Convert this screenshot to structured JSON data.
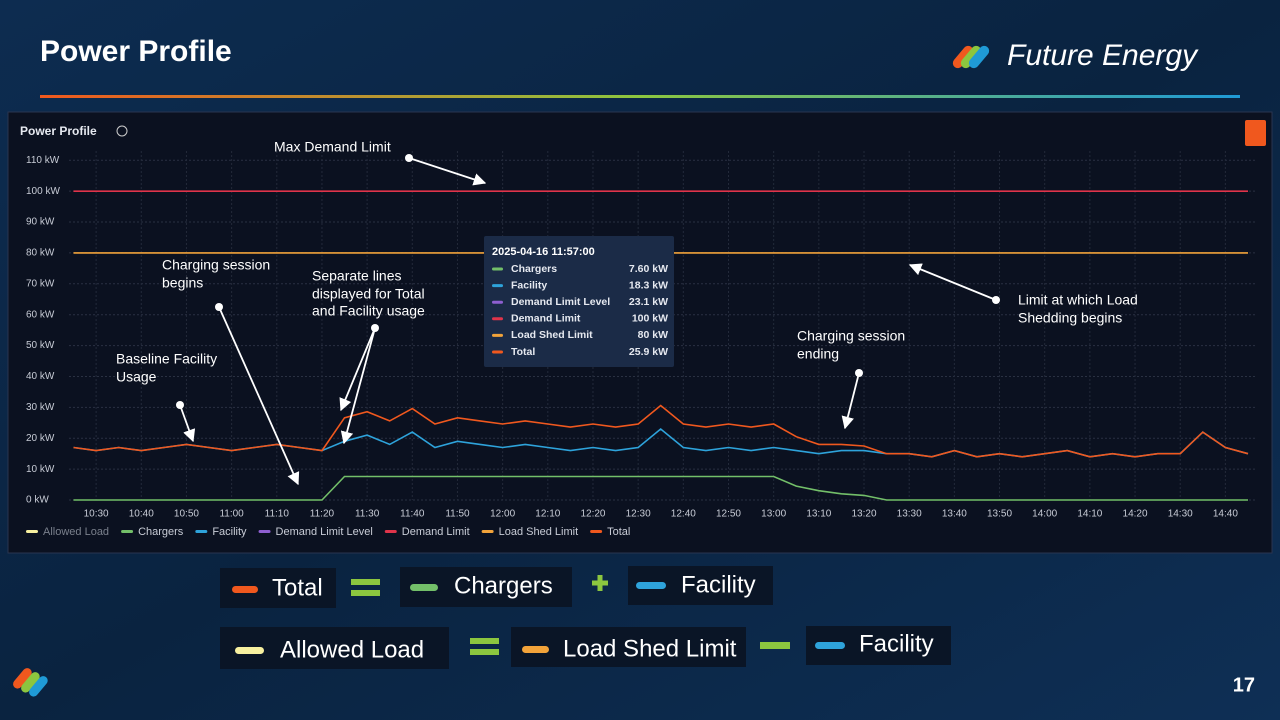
{
  "slide": {
    "title": "Power Profile",
    "brand": "Future Energy",
    "page_number": "17",
    "equations": [
      [
        "Total",
        "Chargers",
        "Facility"
      ],
      [
        "Allowed Load",
        "Load Shed Limit",
        "Facility"
      ]
    ]
  },
  "chart_data": {
    "type": "line",
    "title": "Power Profile",
    "x": [
      "10:25",
      "10:30",
      "10:35",
      "10:40",
      "10:45",
      "10:50",
      "10:55",
      "11:00",
      "11:05",
      "11:10",
      "11:15",
      "11:20",
      "11:25",
      "11:30",
      "11:35",
      "11:40",
      "11:45",
      "11:50",
      "11:55",
      "12:00",
      "12:05",
      "12:10",
      "12:15",
      "12:20",
      "12:25",
      "12:30",
      "12:35",
      "12:40",
      "12:45",
      "12:50",
      "12:55",
      "13:00",
      "13:05",
      "13:10",
      "13:15",
      "13:20",
      "13:25",
      "13:30",
      "13:35",
      "13:40",
      "13:45",
      "13:50",
      "13:55",
      "14:00",
      "14:05",
      "14:10",
      "14:15",
      "14:20",
      "14:25",
      "14:30",
      "14:35",
      "14:40",
      "14:45"
    ],
    "xlim": [
      "10:24",
      "14:47"
    ],
    "xticks": [
      "10:30",
      "10:40",
      "10:50",
      "11:00",
      "11:10",
      "11:20",
      "11:30",
      "11:40",
      "11:50",
      "12:00",
      "12:10",
      "12:20",
      "12:30",
      "12:40",
      "12:50",
      "13:00",
      "13:10",
      "13:20",
      "13:30",
      "13:40",
      "13:50",
      "14:00",
      "14:10",
      "14:20",
      "14:30",
      "14:40"
    ],
    "ylim": [
      0,
      113
    ],
    "yticks": [
      {
        "value": 0,
        "label": "0 kW"
      },
      {
        "value": 10,
        "label": "10 kW"
      },
      {
        "value": 20,
        "label": "20 kW"
      },
      {
        "value": 30,
        "label": "30 kW"
      },
      {
        "value": 40,
        "label": "40 kW"
      },
      {
        "value": 50,
        "label": "50 kW"
      },
      {
        "value": 60,
        "label": "60 kW"
      },
      {
        "value": 70,
        "label": "70 kW"
      },
      {
        "value": 80,
        "label": "80 kW"
      },
      {
        "value": 90,
        "label": "90 kW"
      },
      {
        "value": 100,
        "label": "100 kW"
      },
      {
        "value": 110,
        "label": "110 kW"
      }
    ],
    "grid": true,
    "series": [
      {
        "name": "Allowed Load",
        "color": "#f7f0a0",
        "values": [
          null,
          null,
          null,
          null,
          null,
          null,
          null,
          null,
          null,
          null,
          null,
          null,
          null,
          null,
          null,
          null,
          null,
          null,
          null,
          null,
          null,
          null,
          null,
          null,
          null,
          null,
          null,
          null,
          null,
          null,
          null,
          null,
          null,
          null,
          null,
          null,
          null,
          null,
          null,
          null,
          null,
          null,
          null,
          null,
          null,
          null,
          null,
          null,
          null,
          null,
          null,
          null,
          null
        ]
      },
      {
        "name": "Chargers",
        "color": "#73bf69",
        "values": [
          0,
          0,
          0,
          0,
          0,
          0,
          0,
          0,
          0,
          0,
          0,
          0,
          7.6,
          7.6,
          7.6,
          7.6,
          7.6,
          7.6,
          7.6,
          7.6,
          7.6,
          7.6,
          7.6,
          7.6,
          7.6,
          7.6,
          7.6,
          7.6,
          7.6,
          7.6,
          7.6,
          7.6,
          4.5,
          3,
          2,
          1.5,
          0,
          0,
          0,
          0,
          0,
          0,
          0,
          0,
          0,
          0,
          0,
          0,
          0,
          0,
          0,
          0,
          0
        ]
      },
      {
        "name": "Facility",
        "color": "#2ea3db",
        "values": [
          17,
          16,
          17,
          16,
          17,
          18,
          17,
          16,
          17,
          18,
          17,
          16,
          19,
          21,
          18,
          22,
          17,
          19,
          18,
          17,
          18,
          17,
          16,
          17,
          16,
          17,
          23,
          17,
          16,
          17,
          16,
          17,
          16,
          15,
          16,
          16,
          15,
          15,
          14,
          16,
          14,
          15,
          14,
          15,
          16,
          14,
          15,
          14,
          15,
          15,
          22,
          17,
          15
        ]
      },
      {
        "name": "Demand Limit Level",
        "color": "#8e5fd0",
        "values": [
          null,
          null,
          null,
          null,
          null,
          null,
          null,
          null,
          null,
          null,
          null,
          null,
          null,
          null,
          null,
          null,
          null,
          null,
          null,
          null,
          null,
          null,
          null,
          null,
          null,
          null,
          null,
          null,
          null,
          null,
          null,
          null,
          null,
          null,
          null,
          null,
          null,
          null,
          null,
          null,
          null,
          null,
          null,
          null,
          null,
          null,
          null,
          null,
          null,
          null,
          null,
          null,
          null
        ]
      },
      {
        "name": "Demand Limit",
        "color": "#e0344a",
        "values": [
          100,
          100,
          100,
          100,
          100,
          100,
          100,
          100,
          100,
          100,
          100,
          100,
          100,
          100,
          100,
          100,
          100,
          100,
          100,
          100,
          100,
          100,
          100,
          100,
          100,
          100,
          100,
          100,
          100,
          100,
          100,
          100,
          100,
          100,
          100,
          100,
          100,
          100,
          100,
          100,
          100,
          100,
          100,
          100,
          100,
          100,
          100,
          100,
          100,
          100,
          100,
          100,
          100
        ]
      },
      {
        "name": "Load Shed Limit",
        "color": "#f2a33a",
        "values": [
          80,
          80,
          80,
          80,
          80,
          80,
          80,
          80,
          80,
          80,
          80,
          80,
          80,
          80,
          80,
          80,
          80,
          80,
          80,
          80,
          80,
          80,
          80,
          80,
          80,
          80,
          80,
          80,
          80,
          80,
          80,
          80,
          80,
          80,
          80,
          80,
          80,
          80,
          80,
          80,
          80,
          80,
          80,
          80,
          80,
          80,
          80,
          80,
          80,
          80,
          80,
          80,
          80
        ]
      },
      {
        "name": "Total",
        "color": "#f0581e",
        "values": [
          17,
          16,
          17,
          16,
          17,
          18,
          17,
          16,
          17,
          18,
          17,
          16,
          26.6,
          28.6,
          25.6,
          29.6,
          24.6,
          26.6,
          25.6,
          24.6,
          25.6,
          24.6,
          23.6,
          24.6,
          23.6,
          24.6,
          30.6,
          24.6,
          23.6,
          24.6,
          23.6,
          24.6,
          20.5,
          18,
          18,
          17.5,
          15,
          15,
          14,
          16,
          14,
          15,
          14,
          15,
          16,
          14,
          15,
          14,
          15,
          15,
          22,
          17,
          15
        ]
      }
    ],
    "tooltip": {
      "title": "2025-04-16 11:57:00",
      "rows": [
        {
          "name": "Chargers",
          "value": "7.60 kW"
        },
        {
          "name": "Facility",
          "value": "18.3 kW"
        },
        {
          "name": "Demand Limit Level",
          "value": "23.1 kW"
        },
        {
          "name": "Demand Limit",
          "value": "100 kW"
        },
        {
          "name": "Load Shed Limit",
          "value": "80 kW"
        },
        {
          "name": "Total",
          "value": "25.9 kW"
        }
      ]
    },
    "annotations": [
      [
        "Max Demand Limit"
      ],
      [
        "Charging session",
        "begins"
      ],
      [
        "Separate lines",
        "displayed for Total",
        "and Facility usage"
      ],
      [
        "Baseline Facility",
        "Usage"
      ],
      [
        "Charging session",
        "ending"
      ],
      [
        "Limit at which Load",
        "Shedding begins"
      ]
    ]
  }
}
